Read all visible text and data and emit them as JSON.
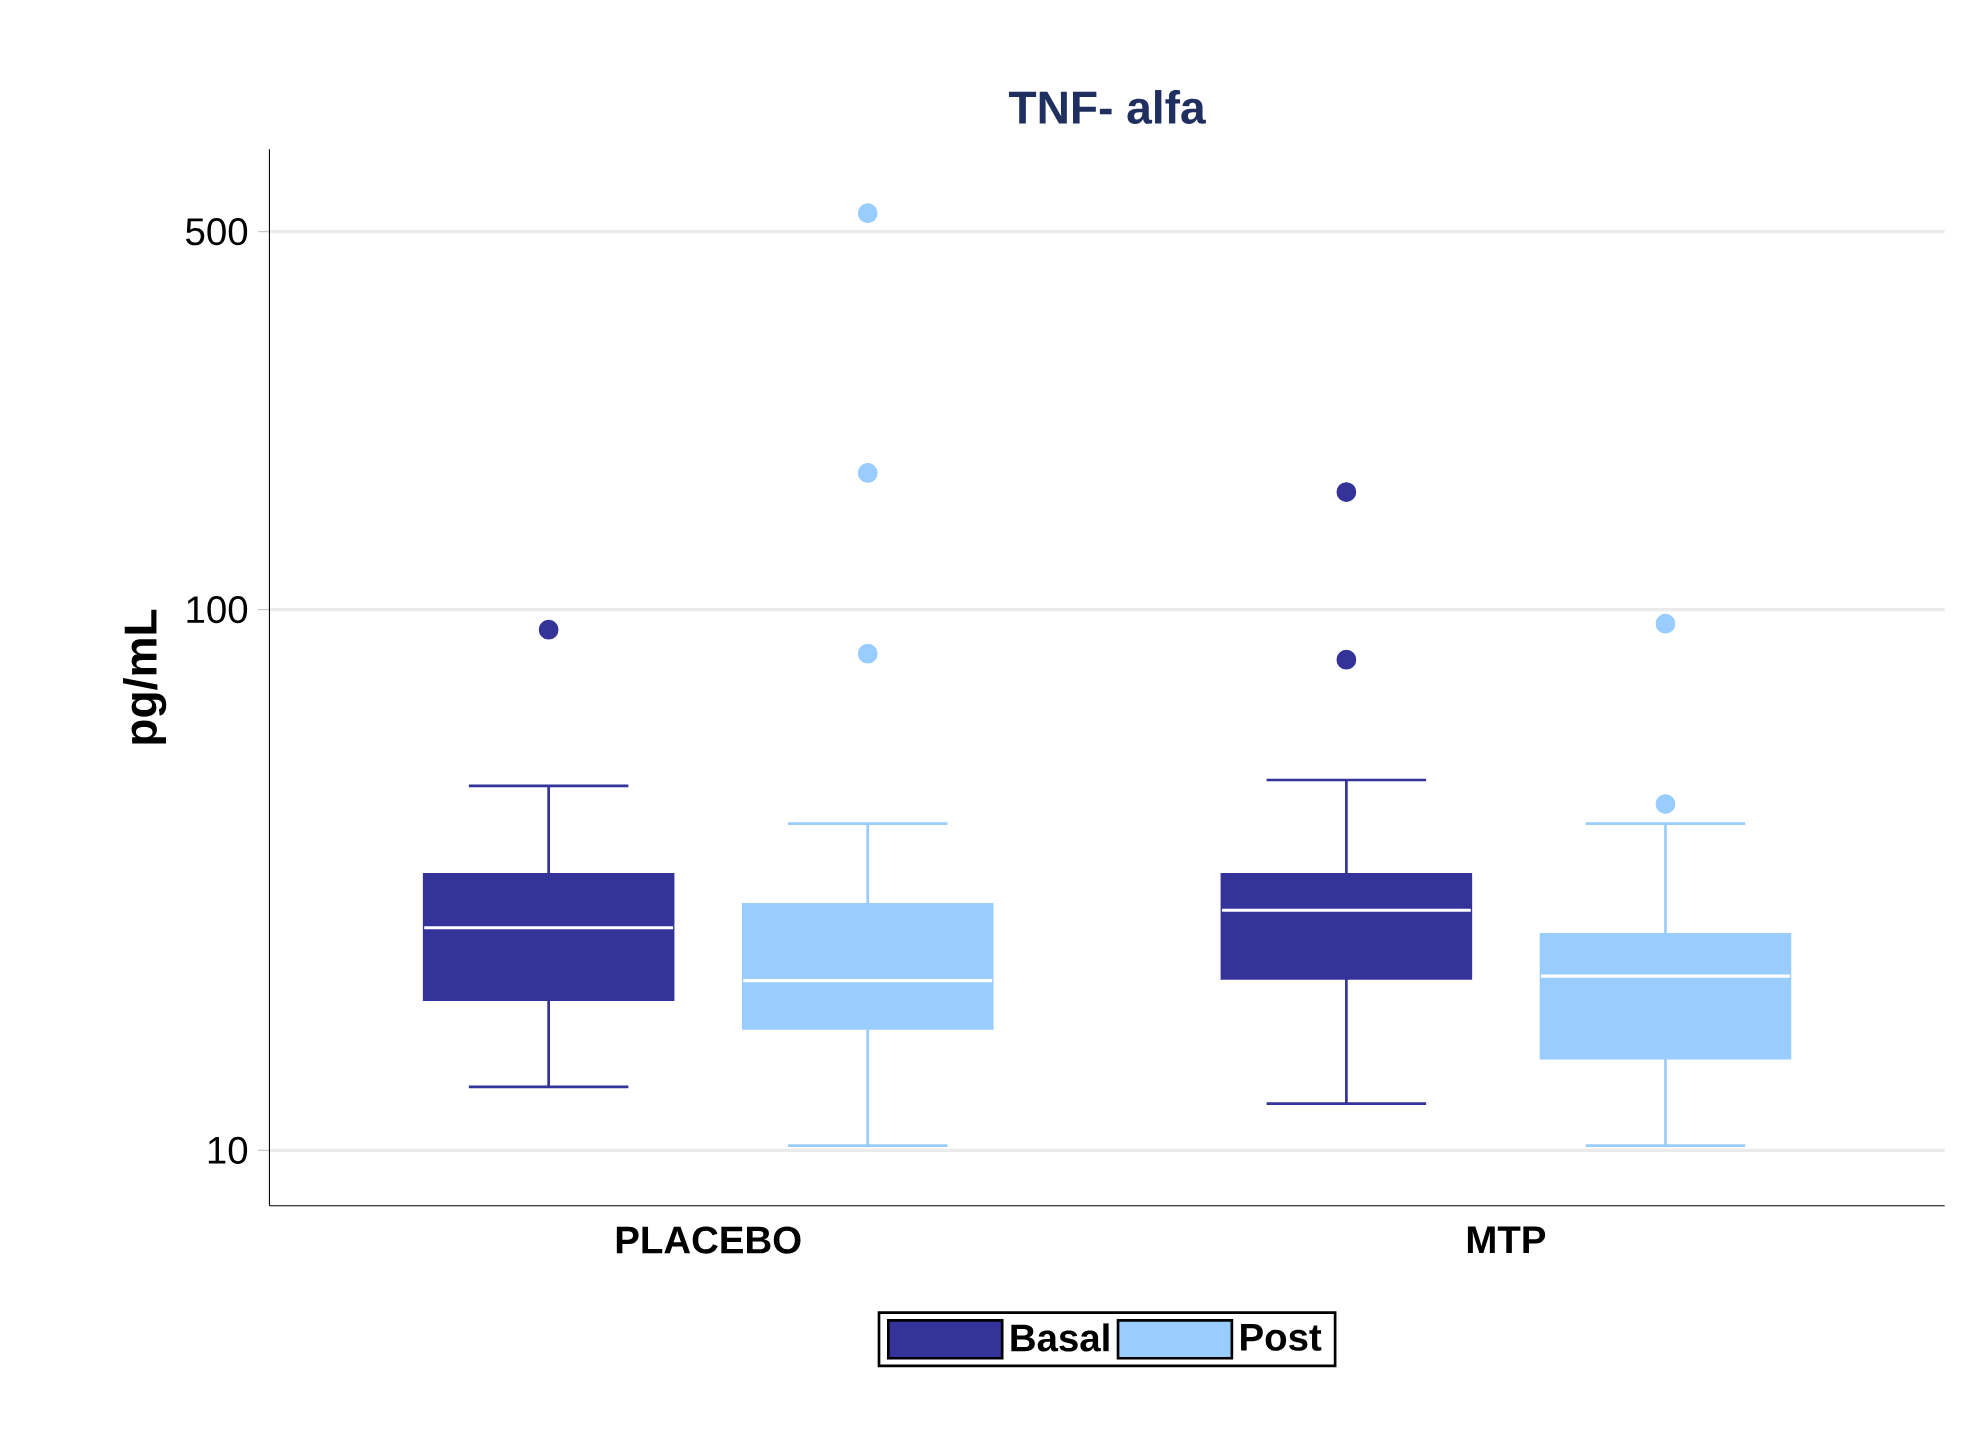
{
  "chart_data": {
    "type": "box",
    "title": "TNF- alfa",
    "ylabel": "pg/mL",
    "categories": [
      "PLACEBO",
      "MTP"
    ],
    "series": [
      {
        "name": "Basal",
        "color": "#333399",
        "boxes": [
          {
            "low": 13.1,
            "q1": 19.0,
            "median": 25.8,
            "q3": 32.4,
            "high": 47.2,
            "outliers": [
              91.8
            ]
          },
          {
            "low": 12.2,
            "q1": 20.8,
            "median": 27.8,
            "q3": 32.4,
            "high": 48.4,
            "outliers": [
              165,
              80.8
            ]
          }
        ]
      },
      {
        "name": "Post",
        "color": "#99ccff",
        "boxes": [
          {
            "low": 10.2,
            "q1": 16.8,
            "median": 20.6,
            "q3": 28.5,
            "high": 40.2,
            "outliers": [
              541,
              179,
              82.9
            ]
          },
          {
            "low": 10.2,
            "q1": 14.8,
            "median": 21.0,
            "q3": 25.1,
            "high": 40.2,
            "outliers": [
              94.2,
              43.7
            ]
          }
        ]
      }
    ],
    "log": "y",
    "ylim": [
      7.9,
      710
    ],
    "yticks": [
      10,
      100,
      500
    ],
    "grid": "y",
    "legend": "bottom"
  }
}
